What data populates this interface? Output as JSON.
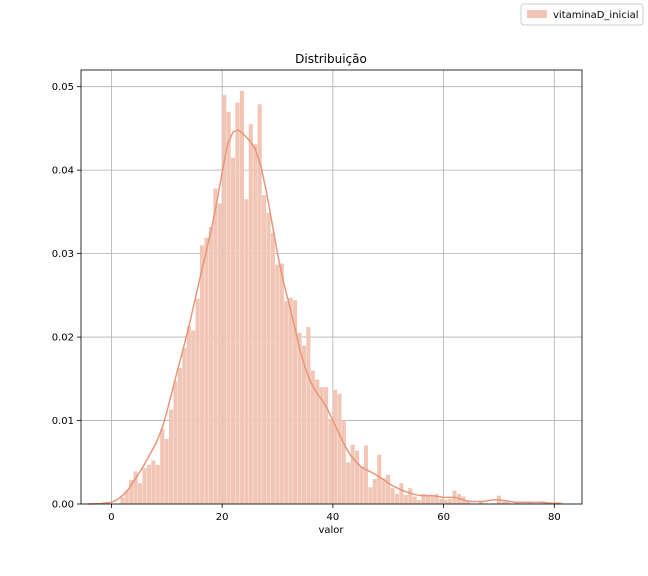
{
  "chart_data": {
    "type": "bar",
    "title": "Distribuição",
    "xlabel": "valor",
    "ylabel": "",
    "xlim": [
      -5.5,
      85
    ],
    "ylim": [
      0,
      0.052
    ],
    "xticks": [
      0,
      20,
      40,
      60,
      80
    ],
    "yticks": [
      0.0,
      0.01,
      0.02,
      0.03,
      0.04,
      0.05
    ],
    "ytick_labels": [
      "0.00",
      "0.01",
      "0.02",
      "0.03",
      "0.04",
      "0.05"
    ],
    "grid": true,
    "legend": {
      "placement": "top-right",
      "entries": [
        "vitaminaD_inicial"
      ]
    },
    "colors": {
      "bar": "#f2c6b6",
      "kde": "#e8967a",
      "grid": "#b0b0b0"
    },
    "bin_width": 0.8,
    "series": [
      {
        "name": "vitaminaD_inicial",
        "type": "histogram",
        "bins": [
          {
            "x": 1.6,
            "y": 0.0008
          },
          {
            "x": 2.4,
            "y": 0.0016
          },
          {
            "x": 3.2,
            "y": 0.0029
          },
          {
            "x": 4.0,
            "y": 0.0039
          },
          {
            "x": 4.8,
            "y": 0.0025
          },
          {
            "x": 5.6,
            "y": 0.0043
          },
          {
            "x": 6.4,
            "y": 0.0047
          },
          {
            "x": 7.2,
            "y": 0.0052
          },
          {
            "x": 8.0,
            "y": 0.0047
          },
          {
            "x": 8.8,
            "y": 0.009
          },
          {
            "x": 9.6,
            "y": 0.0078
          },
          {
            "x": 10.4,
            "y": 0.0113
          },
          {
            "x": 11.2,
            "y": 0.0147
          },
          {
            "x": 12.0,
            "y": 0.0163
          },
          {
            "x": 12.8,
            "y": 0.0187
          },
          {
            "x": 13.6,
            "y": 0.0213
          },
          {
            "x": 14.4,
            "y": 0.0208
          },
          {
            "x": 15.2,
            "y": 0.0246
          },
          {
            "x": 16.0,
            "y": 0.031
          },
          {
            "x": 16.8,
            "y": 0.0319
          },
          {
            "x": 17.6,
            "y": 0.0332
          },
          {
            "x": 18.4,
            "y": 0.0378
          },
          {
            "x": 19.2,
            "y": 0.036
          },
          {
            "x": 20.0,
            "y": 0.049
          },
          {
            "x": 20.8,
            "y": 0.047
          },
          {
            "x": 21.6,
            "y": 0.0415
          },
          {
            "x": 22.4,
            "y": 0.0481
          },
          {
            "x": 23.2,
            "y": 0.0495
          },
          {
            "x": 24.0,
            "y": 0.0365
          },
          {
            "x": 24.8,
            "y": 0.0455
          },
          {
            "x": 25.6,
            "y": 0.0431
          },
          {
            "x": 26.4,
            "y": 0.0479
          },
          {
            "x": 27.2,
            "y": 0.037
          },
          {
            "x": 28.0,
            "y": 0.0349
          },
          {
            "x": 28.8,
            "y": 0.0325
          },
          {
            "x": 29.6,
            "y": 0.0287
          },
          {
            "x": 30.4,
            "y": 0.0288
          },
          {
            "x": 31.2,
            "y": 0.0243
          },
          {
            "x": 32.0,
            "y": 0.0247
          },
          {
            "x": 32.8,
            "y": 0.0244
          },
          {
            "x": 33.6,
            "y": 0.0205
          },
          {
            "x": 34.4,
            "y": 0.019
          },
          {
            "x": 35.2,
            "y": 0.0212
          },
          {
            "x": 36.0,
            "y": 0.016
          },
          {
            "x": 36.8,
            "y": 0.0149
          },
          {
            "x": 37.6,
            "y": 0.014
          },
          {
            "x": 38.4,
            "y": 0.014
          },
          {
            "x": 39.2,
            "y": 0.0102
          },
          {
            "x": 40.0,
            "y": 0.0137
          },
          {
            "x": 40.8,
            "y": 0.0132
          },
          {
            "x": 41.6,
            "y": 0.01
          },
          {
            "x": 42.4,
            "y": 0.005
          },
          {
            "x": 43.2,
            "y": 0.0071
          },
          {
            "x": 44.0,
            "y": 0.0064
          },
          {
            "x": 44.8,
            "y": 0.0045
          },
          {
            "x": 45.6,
            "y": 0.007
          },
          {
            "x": 46.4,
            "y": 0.002
          },
          {
            "x": 47.2,
            "y": 0.003
          },
          {
            "x": 48.0,
            "y": 0.0059
          },
          {
            "x": 48.8,
            "y": 0.0031
          },
          {
            "x": 49.6,
            "y": 0.0035
          },
          {
            "x": 50.4,
            "y": 0.0019
          },
          {
            "x": 51.2,
            "y": 0.0012
          },
          {
            "x": 52.0,
            "y": 0.0025
          },
          {
            "x": 52.8,
            "y": 0.0011
          },
          {
            "x": 53.6,
            "y": 0.0019
          },
          {
            "x": 54.4,
            "y": 0.0009
          },
          {
            "x": 55.2,
            "y": 0.0005
          },
          {
            "x": 56.0,
            "y": 0.0012
          },
          {
            "x": 56.8,
            "y": 0.001
          },
          {
            "x": 57.6,
            "y": 0.001
          },
          {
            "x": 58.4,
            "y": 0.0012
          },
          {
            "x": 59.2,
            "y": 0.0006
          },
          {
            "x": 60.0,
            "y": 0.0005
          },
          {
            "x": 60.8,
            "y": 0.0006
          },
          {
            "x": 61.6,
            "y": 0.0016
          },
          {
            "x": 62.4,
            "y": 0.0012
          },
          {
            "x": 63.2,
            "y": 0.0009
          },
          {
            "x": 64.0,
            "y": 0.0003
          },
          {
            "x": 66.4,
            "y": 0.0003
          },
          {
            "x": 69.6,
            "y": 0.001
          },
          {
            "x": 70.4,
            "y": 0.0003
          },
          {
            "x": 71.2,
            "y": 0.0003
          },
          {
            "x": 72.8,
            "y": 0.0003
          },
          {
            "x": 75.2,
            "y": 0.0003
          },
          {
            "x": 77.6,
            "y": 0.0003
          },
          {
            "x": 80.0,
            "y": 0.0002
          },
          {
            "x": 80.8,
            "y": 0.0002
          }
        ]
      },
      {
        "name": "kde",
        "type": "line",
        "points": [
          [
            -4.3,
            0.0
          ],
          [
            -2,
            5e-05
          ],
          [
            0,
            0.0002
          ],
          [
            1,
            0.0005
          ],
          [
            2,
            0.001
          ],
          [
            3,
            0.0017
          ],
          [
            4,
            0.0027
          ],
          [
            5,
            0.0037
          ],
          [
            6,
            0.0048
          ],
          [
            7,
            0.006
          ],
          [
            8,
            0.0072
          ],
          [
            9,
            0.0088
          ],
          [
            10,
            0.011
          ],
          [
            11,
            0.0136
          ],
          [
            12,
            0.0162
          ],
          [
            13,
            0.0187
          ],
          [
            14,
            0.0213
          ],
          [
            15,
            0.0242
          ],
          [
            16,
            0.0271
          ],
          [
            17,
            0.0299
          ],
          [
            18,
            0.0328
          ],
          [
            19,
            0.036
          ],
          [
            20,
            0.0398
          ],
          [
            21,
            0.0432
          ],
          [
            22,
            0.0446
          ],
          [
            23,
            0.0448
          ],
          [
            24,
            0.0442
          ],
          [
            25,
            0.0435
          ],
          [
            26,
            0.0425
          ],
          [
            27,
            0.0405
          ],
          [
            28,
            0.0374
          ],
          [
            29,
            0.0337
          ],
          [
            30,
            0.03
          ],
          [
            31,
            0.0268
          ],
          [
            32,
            0.0242
          ],
          [
            33,
            0.0215
          ],
          [
            34,
            0.0186
          ],
          [
            35,
            0.0163
          ],
          [
            36,
            0.0146
          ],
          [
            37,
            0.0134
          ],
          [
            38,
            0.0125
          ],
          [
            39,
            0.0114
          ],
          [
            40,
            0.01
          ],
          [
            41,
            0.0086
          ],
          [
            42,
            0.0072
          ],
          [
            43,
            0.006
          ],
          [
            44,
            0.0052
          ],
          [
            45,
            0.0045
          ],
          [
            46,
            0.0041
          ],
          [
            47,
            0.0038
          ],
          [
            48,
            0.0034
          ],
          [
            49,
            0.003
          ],
          [
            50,
            0.0025
          ],
          [
            51,
            0.0021
          ],
          [
            52,
            0.0018
          ],
          [
            53,
            0.0015
          ],
          [
            54,
            0.0013
          ],
          [
            55,
            0.0011
          ],
          [
            56,
            0.001
          ],
          [
            57,
            0.001
          ],
          [
            58,
            0.001
          ],
          [
            59,
            0.0009
          ],
          [
            60,
            0.0008
          ],
          [
            61,
            0.0008
          ],
          [
            62,
            0.0008
          ],
          [
            63,
            0.0006
          ],
          [
            64,
            0.0004
          ],
          [
            65,
            0.0003
          ],
          [
            66,
            0.0003
          ],
          [
            67,
            0.0003
          ],
          [
            68,
            0.0004
          ],
          [
            69,
            0.0005
          ],
          [
            70,
            0.0005
          ],
          [
            71,
            0.0004
          ],
          [
            72,
            0.0003
          ],
          [
            73,
            0.0002
          ],
          [
            74,
            0.0002
          ],
          [
            75,
            0.0002
          ],
          [
            76,
            0.0002
          ],
          [
            77,
            0.0002
          ],
          [
            78,
            0.0002
          ],
          [
            79,
            0.0001
          ],
          [
            80,
            0.0001
          ],
          [
            81,
            5e-05
          ]
        ]
      }
    ]
  }
}
